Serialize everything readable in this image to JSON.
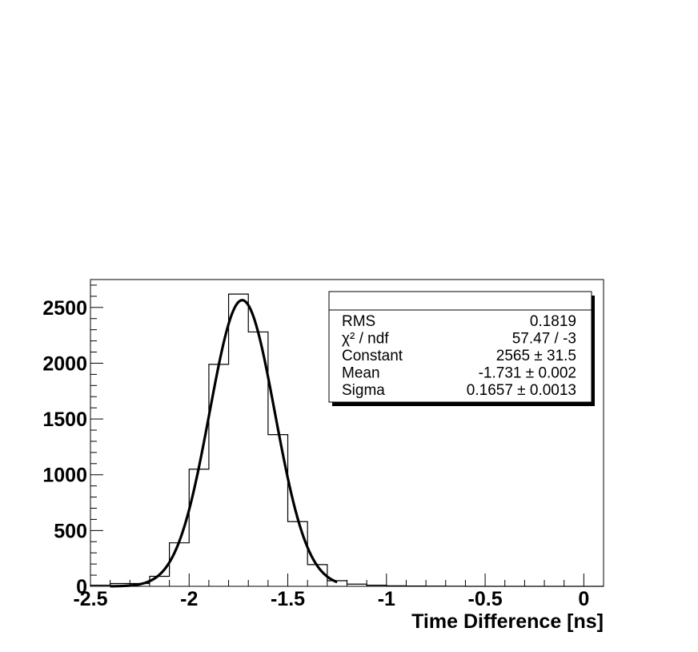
{
  "chart_data": {
    "type": "bar",
    "subtype": "histogram-with-gaussian-fit",
    "title": "",
    "xlabel": "Time Difference [ns]",
    "ylabel": "",
    "xlim": [
      -2.5,
      0.1
    ],
    "ylim": [
      0,
      2750
    ],
    "x_ticks": [
      -2.5,
      -2,
      -1.5,
      -1,
      -0.5,
      0
    ],
    "x_tick_labels": [
      "-2.5",
      "-2",
      "-1.5",
      "-1",
      "-0.5",
      "0"
    ],
    "y_ticks": [
      0,
      500,
      1000,
      1500,
      2000,
      2500
    ],
    "y_tick_labels": [
      "0",
      "500",
      "1000",
      "1500",
      "2000",
      "2500"
    ],
    "bin_width": 0.1,
    "bin_edges_start": -2.5,
    "bin_counts": [
      10,
      25,
      25,
      90,
      390,
      1050,
      1990,
      2620,
      2280,
      1360,
      580,
      195,
      50,
      20,
      10,
      5,
      3,
      2,
      1,
      0,
      0,
      0,
      0,
      0,
      0,
      0
    ],
    "fit": {
      "function": "gaus",
      "constant": 2565,
      "mean": -1.731,
      "sigma": 0.1657,
      "x_range": [
        -2.4,
        -1.25
      ]
    },
    "grid": false,
    "stats_box": {
      "placement": "top-right",
      "rows": [
        {
          "label": "RMS",
          "value": "0.1819"
        },
        {
          "label": "χ² / ndf",
          "value": "57.47 / -3"
        },
        {
          "label": "Constant",
          "value": "2565 ± 31.5"
        },
        {
          "label": "Mean",
          "value": "-1.731 ± 0.002"
        },
        {
          "label": "Sigma",
          "value": "0.1657 ± 0.0013"
        }
      ]
    }
  }
}
